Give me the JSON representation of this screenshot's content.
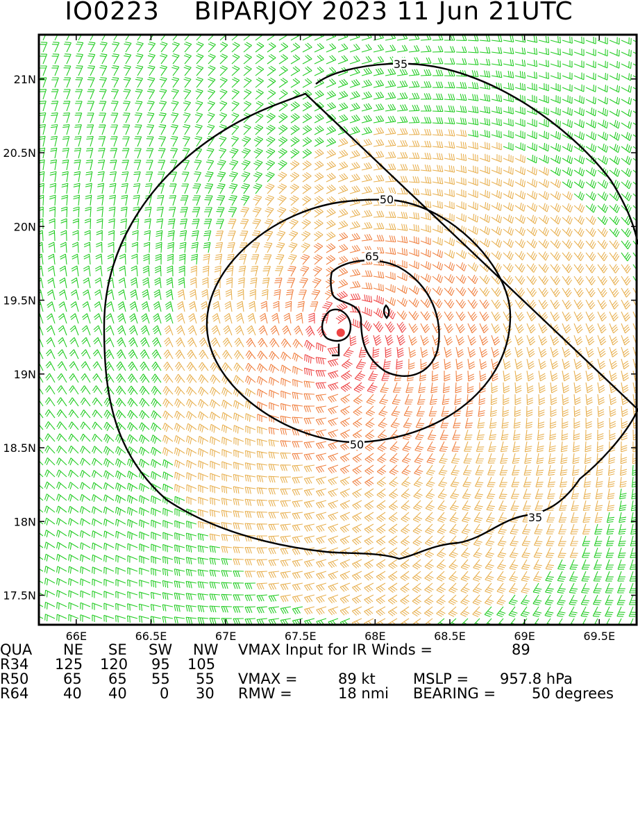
{
  "header": {
    "id": "IO0223",
    "storm": "BIPARJOY 2023 11 Jun 21UTC"
  },
  "map": {
    "lon_range": [
      65.75,
      69.75
    ],
    "lat_range": [
      17.3,
      21.3
    ],
    "x_ticks": [
      "66E",
      "66.5E",
      "67E",
      "67.5E",
      "68E",
      "68.5E",
      "69E",
      "69.5E"
    ],
    "y_ticks": [
      "17.5N",
      "18N",
      "18.5N",
      "19N",
      "19.5N",
      "20N",
      "20.5N",
      "21N"
    ],
    "contour_labels": [
      "35",
      "50",
      "65",
      "50",
      "35"
    ],
    "center": {
      "lon": 67.77,
      "lat": 19.28
    },
    "colors": {
      "weak": "#22cc22",
      "moderate": "#e8b050",
      "strong": "#f08040",
      "very_strong": "#ee4444",
      "center": "#ee4444",
      "contour": "#000000"
    }
  },
  "info": {
    "row1": {
      "c1": "QUA",
      "c2": "NE",
      "c3": "SE",
      "c4": "SW",
      "c5": "NW",
      "c6": "VMAX Input for IR Winds =",
      "c7": "89"
    },
    "row2": {
      "c1": "R34",
      "c2": "125",
      "c3": "120",
      "c4": "95",
      "c5": "105"
    },
    "row3": {
      "c1": "R50",
      "c2": "65",
      "c3": "65",
      "c4": "55",
      "c5": "55",
      "c6": "VMAX =",
      "c7": "89 kt",
      "c8": "MSLP =",
      "c9": "957.8 hPa"
    },
    "row4": {
      "c1": "R64",
      "c2": "40",
      "c3": "40",
      "c4": "0",
      "c5": "30",
      "c6": "RMW =",
      "c7": "18 nmi",
      "c8": "BEARING =",
      "c9": "50 degrees"
    }
  }
}
